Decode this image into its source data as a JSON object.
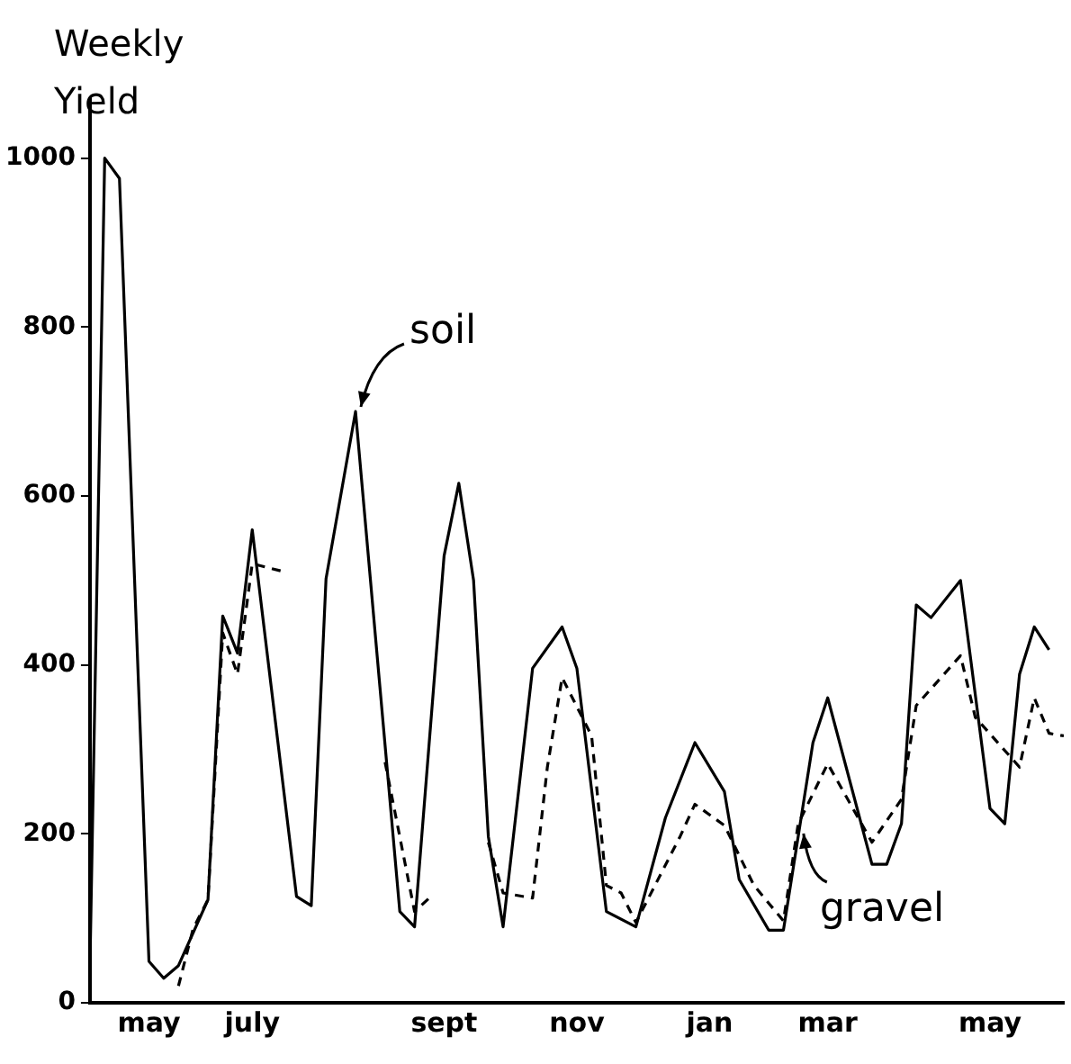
{
  "chart_data": {
    "type": "line",
    "ylabel": "Weekly Yield",
    "categories": [
      null,
      null,
      null,
      null,
      "may",
      null,
      null,
      null,
      null,
      null,
      null,
      "july",
      null,
      null,
      null,
      null,
      null,
      null,
      null,
      null,
      null,
      null,
      null,
      null,
      "sept",
      null,
      null,
      null,
      null,
      null,
      null,
      null,
      null,
      "nov",
      null,
      null,
      null,
      null,
      null,
      null,
      null,
      null,
      "jan",
      null,
      null,
      null,
      null,
      null,
      null,
      null,
      "mar",
      null,
      null,
      null,
      null,
      null,
      null,
      null,
      null,
      null,
      null,
      "may",
      null,
      null,
      null,
      null,
      null
    ],
    "ylim": [
      0,
      1070
    ],
    "yticks": [
      0,
      200,
      400,
      600,
      800,
      1000
    ],
    "grid": false,
    "legend": false,
    "marker": "none",
    "series": [
      {
        "color": "#000000",
        "line_style": "solid",
        "values": [
          42,
          1000,
          976,
          null,
          49,
          29,
          44,
          null,
          122,
          458,
          414,
          560,
          null,
          null,
          126,
          115,
          502,
          null,
          700,
          null,
          null,
          108,
          90,
          null,
          529,
          615,
          500,
          197,
          90,
          null,
          396,
          null,
          445,
          396,
          null,
          108,
          null,
          90,
          null,
          219,
          null,
          308,
          null,
          250,
          146,
          null,
          86,
          86,
          null,
          308,
          361,
          null,
          null,
          164,
          164,
          212,
          471,
          456,
          null,
          500,
          null,
          230,
          212,
          389,
          445,
          418,
          null
        ]
      },
      {
        "color": "#000000",
        "line_style": "dashed",
        "values": [
          null,
          null,
          null,
          null,
          null,
          null,
          20,
          88,
          122,
          438,
          389,
          520,
          null,
          511,
          null,
          null,
          null,
          null,
          null,
          null,
          285,
          null,
          108,
          124,
          null,
          null,
          null,
          190,
          130,
          null,
          124,
          279,
          385,
          null,
          316,
          139,
          130,
          95,
          null,
          null,
          197,
          235,
          null,
          210,
          null,
          139,
          null,
          97,
          212,
          null,
          283,
          null,
          null,
          190,
          null,
          241,
          352,
          null,
          null,
          411,
          338,
          null,
          null,
          279,
          361,
          319,
          316
        ]
      }
    ],
    "annotations": [
      "soil",
      "gravel"
    ]
  }
}
